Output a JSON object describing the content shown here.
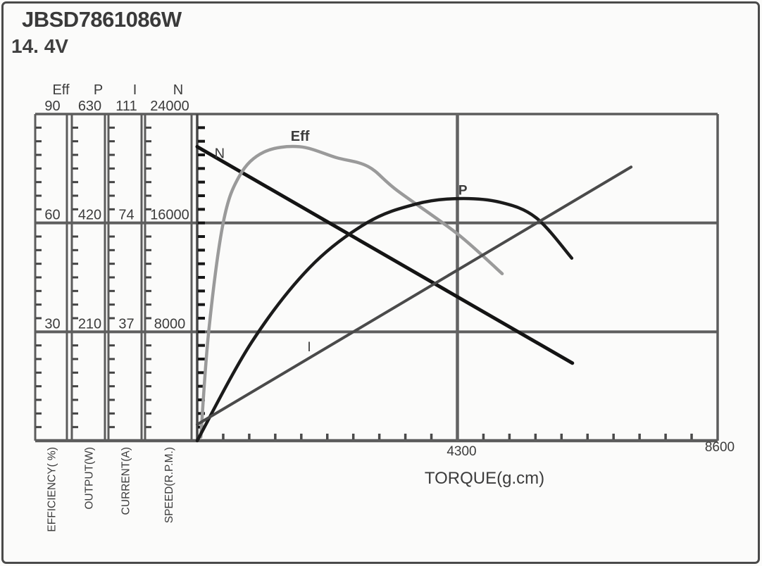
{
  "header": {
    "model": "JBSD7861086W",
    "voltage": "14. 4V"
  },
  "chart_data": {
    "type": "line",
    "title": "",
    "xlabel": "TORQUE(g.cm)",
    "grid": true,
    "x_axis": {
      "name": "torque",
      "unit": "g.cm",
      "min": 0,
      "max": 8600,
      "tick_labels": [
        "4300",
        "8600"
      ],
      "grid_values": [
        4300
      ],
      "minor_tick_count": 20
    },
    "y_axes": [
      {
        "id": "eff",
        "header": "Eff",
        "label": "EFFICIENCY( %)",
        "min": 0,
        "max": 90,
        "tick_labels": [
          "90",
          "60",
          "30"
        ]
      },
      {
        "id": "output",
        "header": "P",
        "label": "OUTPUT(W)",
        "min": 0,
        "max": 630,
        "tick_labels": [
          "630",
          "420",
          "210"
        ]
      },
      {
        "id": "current",
        "header": "I",
        "label": "CURRENT(A)",
        "min": 0,
        "max": 111,
        "tick_labels": [
          "111",
          "74",
          "37"
        ]
      },
      {
        "id": "speed",
        "header": "N",
        "label": "SPEED(R.P.M.)",
        "min": 0,
        "max": 24000,
        "tick_labels": [
          "24000",
          "16000",
          "8000"
        ]
      }
    ],
    "series": [
      {
        "name": "N",
        "axis": "speed",
        "color": "#141414",
        "width": 5,
        "points": [
          [
            0,
            21600
          ],
          [
            6200,
            5700
          ]
        ],
        "label": {
          "text": "N",
          "at": [
            370,
            21150
          ],
          "color": "#141414",
          "size": 20,
          "weight": 400
        }
      },
      {
        "name": "Eff",
        "axis": "eff",
        "color": "#9a9a9a",
        "width": 4.5,
        "points": [
          [
            60,
            1
          ],
          [
            190,
            30
          ],
          [
            430,
            60
          ],
          [
            700,
            73
          ],
          [
            1100,
            79.5
          ],
          [
            1690,
            81
          ],
          [
            2300,
            78
          ],
          [
            2830,
            75.5
          ],
          [
            3300,
            69
          ],
          [
            4300,
            57
          ],
          [
            5040,
            46
          ]
        ],
        "label": {
          "text": "Eff",
          "at": [
            1700,
            84
          ],
          "color": "#8f8f8f",
          "size": 20,
          "weight": 700
        }
      },
      {
        "name": "P",
        "axis": "output",
        "color": "#1b1b1b",
        "width": 4.5,
        "points": [
          [
            0,
            0
          ],
          [
            900,
            190
          ],
          [
            1860,
            334
          ],
          [
            2800,
            420
          ],
          [
            3600,
            456
          ],
          [
            4300,
            467
          ],
          [
            5000,
            460
          ],
          [
            5600,
            430
          ],
          [
            6190,
            352
          ]
        ],
        "label": {
          "text": "P",
          "at": [
            4390,
            484
          ],
          "color": "#111111",
          "size": 19,
          "weight": 700
        }
      },
      {
        "name": "I",
        "axis": "current",
        "color": "#4a4a4a",
        "width": 4,
        "points": [
          [
            0,
            5.5
          ],
          [
            7170,
            93
          ]
        ],
        "label": {
          "text": "I",
          "at": [
            1850,
            32
          ],
          "color": "#1a1a1a",
          "size": 19,
          "weight": 400
        }
      }
    ],
    "colors": {
      "structure_lines": "#5c5c5c",
      "major_gridlines": "#5e5e5e",
      "plot_left_ticks": "#161616",
      "text": "#3c3c3c",
      "background": "#fbfbfa",
      "border": "#4a4a4a"
    },
    "legend_position": "none"
  }
}
